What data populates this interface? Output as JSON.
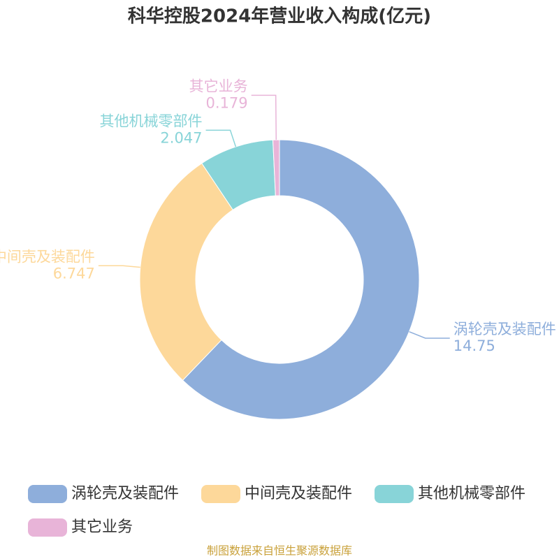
{
  "chart_data": {
    "type": "donut",
    "title": "科华控股2024年营业收入构成(亿元)",
    "categories": [
      "涡轮壳及装配件",
      "中间壳及装配件",
      "其他机械零部件",
      "其它业务"
    ],
    "values": [
      14.75,
      6.747,
      2.047,
      0.179
    ],
    "colors": [
      "#8eaedb",
      "#fdd89a",
      "#88d4d8",
      "#e8b4d8"
    ],
    "source": "制图数据来自恒生聚源数据库"
  }
}
